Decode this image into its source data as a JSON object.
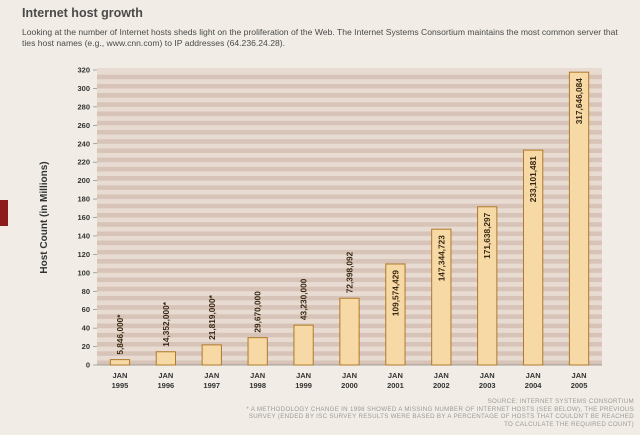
{
  "header": {
    "title": "Internet host growth",
    "intro": "Looking at the number of Internet hosts sheds light on the proliferation of the Web. The Internet Systems Consortium maintains the most common server that ties host names (e.g., www.cnn.com) to IP addresses (64.236.24.28)."
  },
  "footer": {
    "source": "SOURCE: INTERNET SYSTEMS CONSORTIUM",
    "note_line1": "* A METHODOLOGY CHANGE IN 1998 SHOWED A MISSING NUMBER OF INTERNET HOSTS (SEE BELOW), THE PREVIOUS",
    "note_line2": "SURVEY (ENDED BY ISC SURVEY RESULTS WERE BASED BY A PERCENTAGE OF HOSTS THAT COULDN'T BE REACHED",
    "note_line3": "TO CALCULATE THE REQUIRED COUNT)"
  },
  "colors": {
    "bar_fill": "#f6d9a4",
    "bar_edge": "#b07a28",
    "plot_band_a": "#d7c3b8",
    "plot_band_b": "#e8dbd2",
    "text": "#333333"
  },
  "chart_data": {
    "type": "bar",
    "title": "Internet host growth",
    "ylabel": "Host Count (in Millions)",
    "xlabel": "",
    "ylim": [
      0,
      320
    ],
    "yticks": [
      0,
      20,
      40,
      60,
      80,
      100,
      120,
      140,
      160,
      180,
      200,
      220,
      240,
      260,
      280,
      300,
      320
    ],
    "categories": [
      [
        "JAN",
        "1995"
      ],
      [
        "JAN",
        "1996"
      ],
      [
        "JAN",
        "1997"
      ],
      [
        "JAN",
        "1998"
      ],
      [
        "JAN",
        "1999"
      ],
      [
        "JAN",
        "2000"
      ],
      [
        "JAN",
        "2001"
      ],
      [
        "JAN",
        "2002"
      ],
      [
        "JAN",
        "2003"
      ],
      [
        "JAN",
        "2004"
      ],
      [
        "JAN",
        "2005"
      ]
    ],
    "values": [
      5.846,
      14.352,
      21.819,
      29.67,
      43.23,
      72.398092,
      109.574429,
      147.344723,
      171.638297,
      233.101481,
      317.646084
    ],
    "data_labels": [
      "5,846,000*",
      "14,352,000*",
      "21,819,000*",
      "29,670,000",
      "43,230,000",
      "72,398,092",
      "109,574,429",
      "147,344,723",
      "171,638,297",
      "233,101,481",
      "317,646,084"
    ],
    "inside_labels": [
      false,
      false,
      false,
      false,
      false,
      false,
      true,
      true,
      true,
      true,
      true
    ]
  }
}
